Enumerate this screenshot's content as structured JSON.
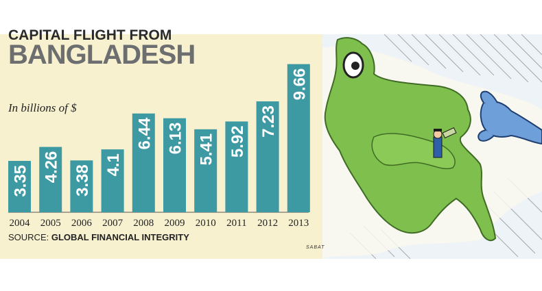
{
  "chart_data": {
    "type": "bar",
    "title_line1": "CAPITAL FLIGHT FROM",
    "title_line2": "BANGLADESH",
    "subtitle": "In billions of $",
    "categories": [
      "2004",
      "2005",
      "2006",
      "2007",
      "2008",
      "2009",
      "2010",
      "2011",
      "2012",
      "2013"
    ],
    "values": [
      3.35,
      4.26,
      3.38,
      4.1,
      6.44,
      6.13,
      5.41,
      5.92,
      7.23,
      9.66
    ],
    "value_labels": [
      "3.35",
      "4.26",
      "3.38",
      "4.1",
      "6.44",
      "6.13",
      "5.41",
      "5.92",
      "7.23",
      "9.66"
    ],
    "xlabel": "",
    "ylabel": "",
    "ylim": [
      0,
      10
    ],
    "grid": false,
    "bar_color": "#3d9aa3",
    "label_color": "#ffffff",
    "source_label": "SOURCE:",
    "source_name": "GLOBAL FINANCIAL INTEGRITY"
  },
  "illustration": {
    "signature": "SABAT",
    "map_color": "#7fbf4d",
    "glove_color": "#6f9fd8"
  }
}
